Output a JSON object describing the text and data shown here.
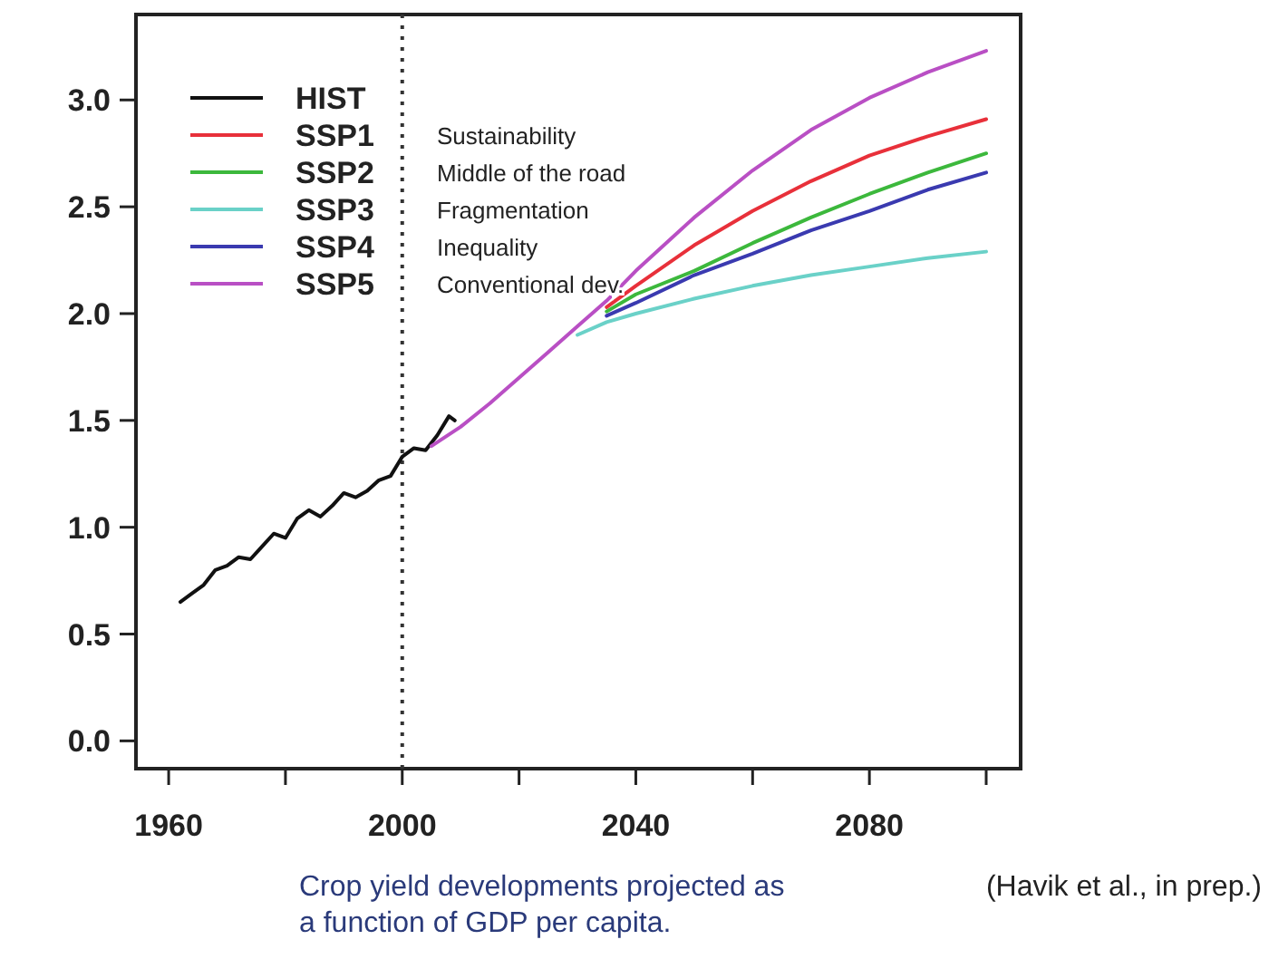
{
  "chart_data": {
    "type": "line",
    "annotations": [
      "Sustainability",
      "Middle of the road",
      "Fragmentation",
      "Inequality",
      "Conventional dev.",
      "Crop yield developments projected as a function of GDP per capita.",
      "(Havik et al., in prep.)"
    ],
    "xlim": [
      1954.4,
      2105.9
    ],
    "ylim": [
      -0.13,
      3.4
    ],
    "xticks": [
      1960,
      {
        "value": 1980,
        "label": null
      },
      2000,
      {
        "value": 2020,
        "label": null
      },
      2040,
      {
        "value": 2060,
        "label": null
      },
      2080,
      {
        "value": 2100,
        "label": null
      }
    ],
    "yticks": [
      {
        "value": 0,
        "label": "0.0"
      },
      {
        "value": 0.5,
        "label": "0.5"
      },
      {
        "value": 1,
        "label": "1.0"
      },
      {
        "value": 1.5,
        "label": "1.5"
      },
      {
        "value": 2,
        "label": "2.0"
      },
      {
        "value": 2.5,
        "label": "2.5"
      },
      {
        "value": 3,
        "label": "3.0"
      }
    ],
    "grid": false,
    "legend": "top left",
    "line_style": "solid",
    "ref_lines": [
      {
        "axis": "x",
        "value": 2000,
        "line_style": "dotted",
        "color": "#333333"
      }
    ],
    "series": [
      {
        "name": "HIST",
        "color": "#111111",
        "x": [
          1962,
          1964,
          1966,
          1968,
          1970,
          1972,
          1974,
          1976,
          1978,
          1980,
          1982,
          1984,
          1986,
          1988,
          1990,
          1992,
          1994,
          1996,
          1998,
          2000,
          2002,
          2004,
          2006,
          2008,
          2009
        ],
        "values": [
          0.65,
          0.69,
          0.73,
          0.8,
          0.82,
          0.86,
          0.85,
          0.91,
          0.97,
          0.95,
          1.04,
          1.08,
          1.05,
          1.1,
          1.16,
          1.14,
          1.17,
          1.22,
          1.24,
          1.33,
          1.37,
          1.36,
          1.43,
          1.52,
          1.5
        ]
      },
      {
        "name": "SSP1",
        "color": "#e8303a",
        "x": [
          2035,
          2040,
          2050,
          2060,
          2070,
          2080,
          2090,
          2100
        ],
        "values": [
          2.03,
          2.13,
          2.32,
          2.48,
          2.62,
          2.74,
          2.83,
          2.91
        ]
      },
      {
        "name": "SSP2",
        "color": "#3cb83c",
        "x": [
          2035,
          2040,
          2050,
          2060,
          2070,
          2080,
          2090,
          2100
        ],
        "values": [
          2.01,
          2.09,
          2.2,
          2.33,
          2.45,
          2.56,
          2.66,
          2.75
        ]
      },
      {
        "name": "SSP3",
        "color": "#6ad1c8",
        "x": [
          2030,
          2035,
          2040,
          2050,
          2060,
          2070,
          2080,
          2090,
          2100
        ],
        "values": [
          1.9,
          1.96,
          2.0,
          2.07,
          2.13,
          2.18,
          2.22,
          2.26,
          2.29
        ]
      },
      {
        "name": "SSP4",
        "color": "#3a3ab0",
        "x": [
          2035,
          2040,
          2050,
          2060,
          2070,
          2080,
          2090,
          2100
        ],
        "values": [
          1.99,
          2.05,
          2.18,
          2.28,
          2.39,
          2.48,
          2.58,
          2.66
        ]
      },
      {
        "name": "SSP5",
        "color": "#b94fc4",
        "x": [
          2005,
          2010,
          2015,
          2020,
          2025,
          2030,
          2035,
          2040,
          2050,
          2060,
          2070,
          2080,
          2090,
          2100
        ],
        "values": [
          1.38,
          1.47,
          1.58,
          1.7,
          1.82,
          1.94,
          2.06,
          2.2,
          2.45,
          2.67,
          2.86,
          3.01,
          3.13,
          3.23
        ]
      }
    ]
  }
}
